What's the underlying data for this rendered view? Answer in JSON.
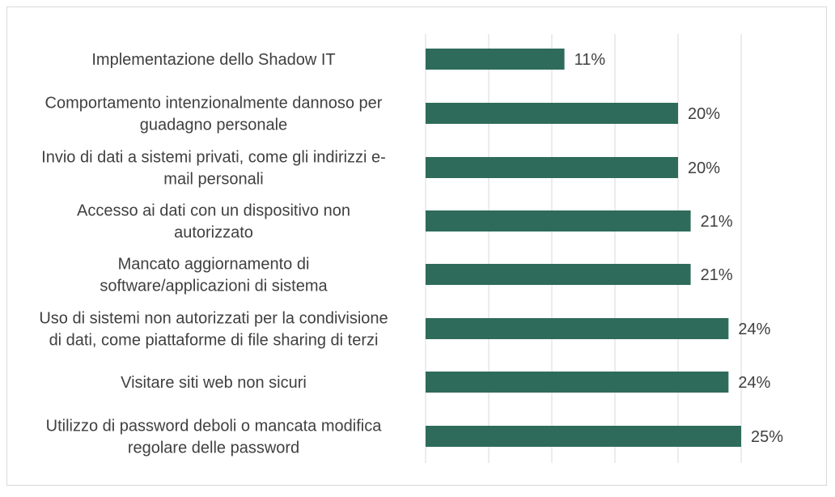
{
  "chart_data": {
    "type": "bar",
    "orientation": "horizontal",
    "categories": [
      [
        "Implementazione dello Shadow IT"
      ],
      [
        "Comportamento intenzionalmente dannoso per",
        "guadagno personale"
      ],
      [
        "Invio di dati a sistemi privati, come gli indirizzi e-",
        "mail personali"
      ],
      [
        "Accesso ai dati con un dispositivo non",
        "autorizzato"
      ],
      [
        "Mancato aggiornamento di",
        "software/applicazioni di sistema"
      ],
      [
        "Uso di sistemi non autorizzati per la condivisione",
        "di dati, come piattaforme di file sharing di terzi"
      ],
      [
        "Visitare siti web non sicuri"
      ],
      [
        "Utilizzo di password deboli o mancata modifica",
        "regolare delle password"
      ]
    ],
    "values": [
      11,
      20,
      20,
      21,
      21,
      24,
      24,
      25
    ],
    "value_labels": [
      "11%",
      "20%",
      "20%",
      "21%",
      "21%",
      "24%",
      "24%",
      "25%"
    ],
    "xlim": [
      0,
      25
    ],
    "grid": true,
    "legend": "none",
    "bar_color": "#2e6b5a",
    "grid_color": "#d9d9d9"
  }
}
